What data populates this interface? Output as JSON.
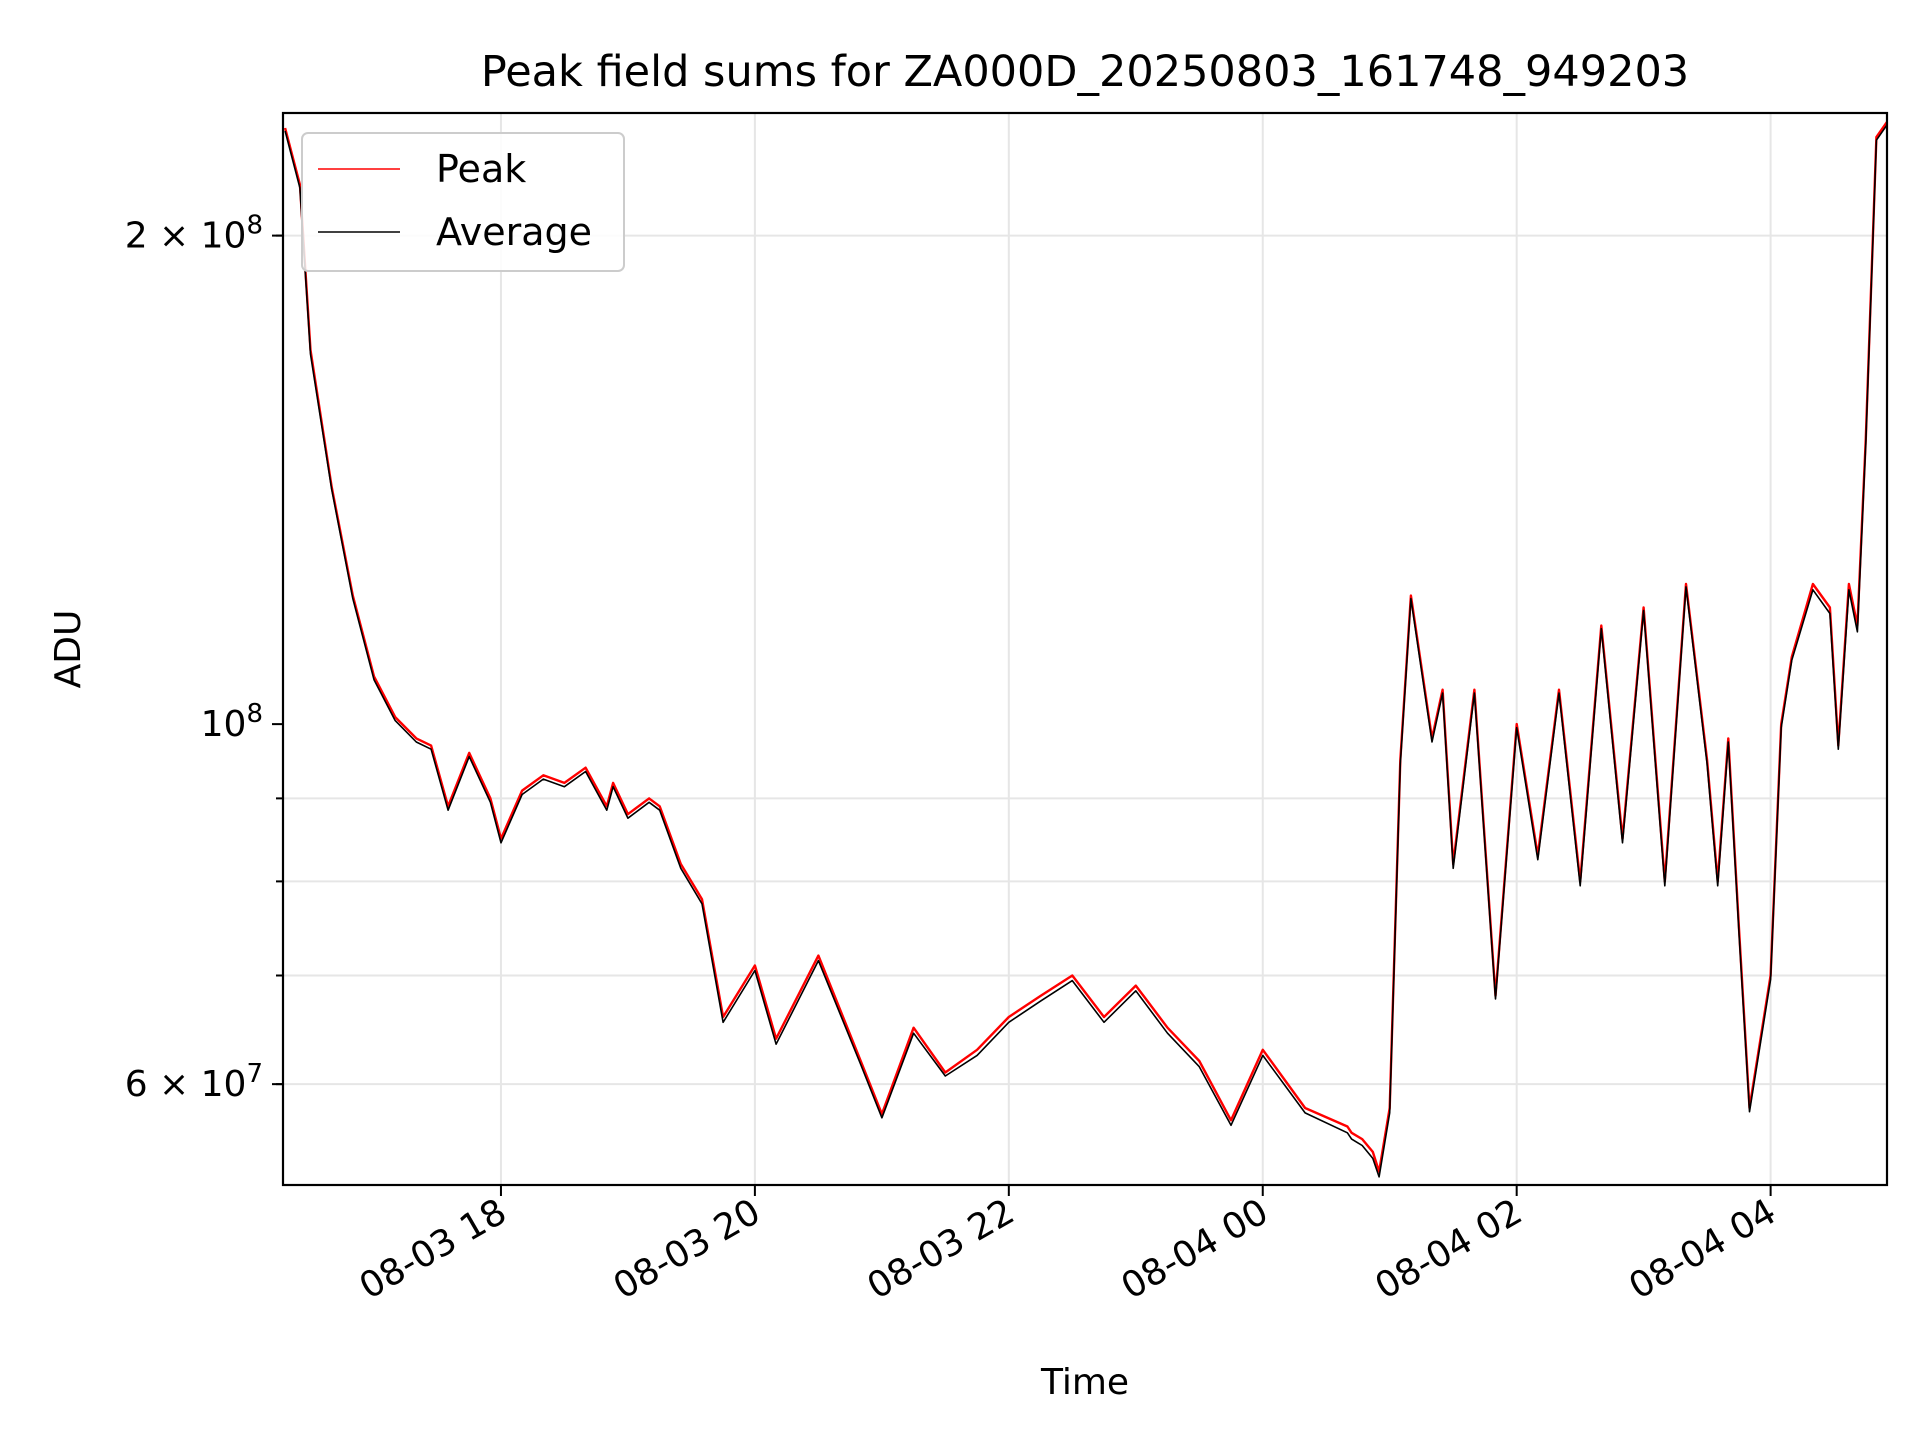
{
  "chart_data": {
    "type": "line",
    "title": "Peak field sums for ZA000D_20250803_161748_949203",
    "xlabel": "Time",
    "ylabel": "ADU",
    "yscale": "log",
    "grid": true,
    "legend_position": "upper-left",
    "x_ticks": [
      "08-03 18",
      "08-03 20",
      "08-03 22",
      "08-04 00",
      "08-04 02",
      "08-04 04"
    ],
    "y_ticks": [
      {
        "value": 200000000,
        "mantissa": "2",
        "exponent": "8"
      },
      {
        "value": 100000000,
        "mantissa": "",
        "exponent": "8"
      },
      {
        "value": 60000000,
        "mantissa": "6",
        "exponent": "7"
      }
    ],
    "ylim": [
      52000000,
      238000000
    ],
    "xlim": [
      "2025-08-03 16:17",
      "2025-08-04 04:55"
    ],
    "colors": {
      "peak": "#ff0000",
      "average": "#000000"
    },
    "series": [
      {
        "name": "Peak",
        "x": [
          "2025-08-03 16:18",
          "2025-08-03 16:25",
          "2025-08-03 16:30",
          "2025-08-03 16:40",
          "2025-08-03 16:50",
          "2025-08-03 17:00",
          "2025-08-03 17:10",
          "2025-08-03 17:20",
          "2025-08-03 17:27",
          "2025-08-03 17:35",
          "2025-08-03 17:45",
          "2025-08-03 17:55",
          "2025-08-03 18:00",
          "2025-08-03 18:10",
          "2025-08-03 18:20",
          "2025-08-03 18:30",
          "2025-08-03 18:40",
          "2025-08-03 18:50",
          "2025-08-03 18:53",
          "2025-08-03 19:00",
          "2025-08-03 19:10",
          "2025-08-03 19:15",
          "2025-08-03 19:25",
          "2025-08-03 19:35",
          "2025-08-03 19:45",
          "2025-08-03 20:00",
          "2025-08-03 20:10",
          "2025-08-03 20:30",
          "2025-08-03 20:50",
          "2025-08-03 21:00",
          "2025-08-03 21:15",
          "2025-08-03 21:30",
          "2025-08-03 21:45",
          "2025-08-03 22:00",
          "2025-08-03 22:15",
          "2025-08-03 22:30",
          "2025-08-03 22:45",
          "2025-08-03 23:00",
          "2025-08-03 23:15",
          "2025-08-03 23:30",
          "2025-08-03 23:45",
          "2025-08-04 00:00",
          "2025-08-04 00:20",
          "2025-08-04 00:40",
          "2025-08-04 00:42",
          "2025-08-04 00:47",
          "2025-08-04 00:52",
          "2025-08-04 00:55",
          "2025-08-04 01:00",
          "2025-08-04 01:05",
          "2025-08-04 01:10",
          "2025-08-04 01:20",
          "2025-08-04 01:25",
          "2025-08-04 01:30",
          "2025-08-04 01:40",
          "2025-08-04 01:50",
          "2025-08-04 02:00",
          "2025-08-04 02:10",
          "2025-08-04 02:20",
          "2025-08-04 02:30",
          "2025-08-04 02:40",
          "2025-08-04 02:50",
          "2025-08-04 03:00",
          "2025-08-04 03:10",
          "2025-08-04 03:20",
          "2025-08-04 03:30",
          "2025-08-04 03:35",
          "2025-08-04 03:40",
          "2025-08-04 03:45",
          "2025-08-04 03:50",
          "2025-08-04 04:00",
          "2025-08-04 04:05",
          "2025-08-04 04:10",
          "2025-08-04 04:20",
          "2025-08-04 04:28",
          "2025-08-04 04:32",
          "2025-08-04 04:37",
          "2025-08-04 04:41",
          "2025-08-04 04:45",
          "2025-08-04 04:50",
          "2025-08-04 04:55"
        ],
        "values": [
          233000000,
          215000000,
          170000000,
          140000000,
          120000000,
          107000000,
          101000000,
          98000000,
          97000000,
          89000000,
          96000000,
          90000000,
          85000000,
          91000000,
          93000000,
          92000000,
          94000000,
          89000000,
          92000000,
          88000000,
          90000000,
          89000000,
          82000000,
          78000000,
          66000000,
          71000000,
          64000000,
          72000000,
          62000000,
          57500000,
          65000000,
          61000000,
          63000000,
          66000000,
          68000000,
          70000000,
          66000000,
          69000000,
          65000000,
          62000000,
          57000000,
          63000000,
          58000000,
          56500000,
          56000000,
          55500000,
          54500000,
          53000000,
          58000000,
          95000000,
          120000000,
          98000000,
          105000000,
          82000000,
          105000000,
          68000000,
          100000000,
          83000000,
          105000000,
          80000000,
          115000000,
          85000000,
          118000000,
          80000000,
          122000000,
          95000000,
          80000000,
          98000000,
          75000000,
          58000000,
          70000000,
          100000000,
          110000000,
          122000000,
          118000000,
          97000000,
          122000000,
          115000000,
          150000000,
          230000000,
          235000000
        ]
      },
      {
        "name": "Average",
        "x": [
          "2025-08-03 16:18",
          "2025-08-03 16:25",
          "2025-08-03 16:30",
          "2025-08-03 16:40",
          "2025-08-03 16:50",
          "2025-08-03 17:00",
          "2025-08-03 17:10",
          "2025-08-03 17:20",
          "2025-08-03 17:27",
          "2025-08-03 17:35",
          "2025-08-03 17:45",
          "2025-08-03 17:55",
          "2025-08-03 18:00",
          "2025-08-03 18:10",
          "2025-08-03 18:20",
          "2025-08-03 18:30",
          "2025-08-03 18:40",
          "2025-08-03 18:50",
          "2025-08-03 18:53",
          "2025-08-03 19:00",
          "2025-08-03 19:10",
          "2025-08-03 19:15",
          "2025-08-03 19:25",
          "2025-08-03 19:35",
          "2025-08-03 19:45",
          "2025-08-03 20:00",
          "2025-08-03 20:10",
          "2025-08-03 20:30",
          "2025-08-03 20:50",
          "2025-08-03 21:00",
          "2025-08-03 21:15",
          "2025-08-03 21:30",
          "2025-08-03 21:45",
          "2025-08-03 22:00",
          "2025-08-03 22:15",
          "2025-08-03 22:30",
          "2025-08-03 22:45",
          "2025-08-03 23:00",
          "2025-08-03 23:15",
          "2025-08-03 23:30",
          "2025-08-03 23:45",
          "2025-08-04 00:00",
          "2025-08-04 00:20",
          "2025-08-04 00:40",
          "2025-08-04 00:42",
          "2025-08-04 00:47",
          "2025-08-04 00:52",
          "2025-08-04 00:55",
          "2025-08-04 01:00",
          "2025-08-04 01:05",
          "2025-08-04 01:10",
          "2025-08-04 01:20",
          "2025-08-04 01:25",
          "2025-08-04 01:30",
          "2025-08-04 01:40",
          "2025-08-04 01:50",
          "2025-08-04 02:00",
          "2025-08-04 02:10",
          "2025-08-04 02:20",
          "2025-08-04 02:30",
          "2025-08-04 02:40",
          "2025-08-04 02:50",
          "2025-08-04 03:00",
          "2025-08-04 03:10",
          "2025-08-04 03:20",
          "2025-08-04 03:30",
          "2025-08-04 03:35",
          "2025-08-04 03:40",
          "2025-08-04 03:45",
          "2025-08-04 03:50",
          "2025-08-04 04:00",
          "2025-08-04 04:05",
          "2025-08-04 04:10",
          "2025-08-04 04:20",
          "2025-08-04 04:28",
          "2025-08-04 04:32",
          "2025-08-04 04:37",
          "2025-08-04 04:41",
          "2025-08-04 04:45",
          "2025-08-04 04:50",
          "2025-08-04 04:55"
        ],
        "values": [
          232000000,
          214000000,
          169000000,
          139500000,
          119500000,
          106500000,
          100500000,
          97500000,
          96500000,
          88500000,
          95500000,
          89500000,
          84500000,
          90500000,
          92500000,
          91500000,
          93500000,
          88500000,
          91500000,
          87500000,
          89500000,
          88500000,
          81500000,
          77500000,
          65500000,
          70500000,
          63500000,
          71500000,
          61700000,
          57200000,
          64500000,
          60700000,
          62500000,
          65500000,
          67500000,
          69500000,
          65500000,
          68500000,
          64500000,
          61500000,
          56600000,
          62500000,
          57600000,
          56000000,
          55500000,
          55000000,
          54000000,
          52600000,
          57600000,
          94500000,
          119500000,
          97500000,
          104500000,
          81500000,
          104500000,
          67700000,
          99500000,
          82500000,
          104500000,
          79500000,
          114500000,
          84500000,
          117500000,
          79500000,
          121500000,
          94500000,
          79500000,
          97500000,
          74500000,
          57700000,
          69600000,
          99500000,
          109500000,
          121000000,
          117000000,
          96500000,
          121000000,
          114000000,
          149000000,
          229000000,
          234000000
        ]
      }
    ]
  }
}
